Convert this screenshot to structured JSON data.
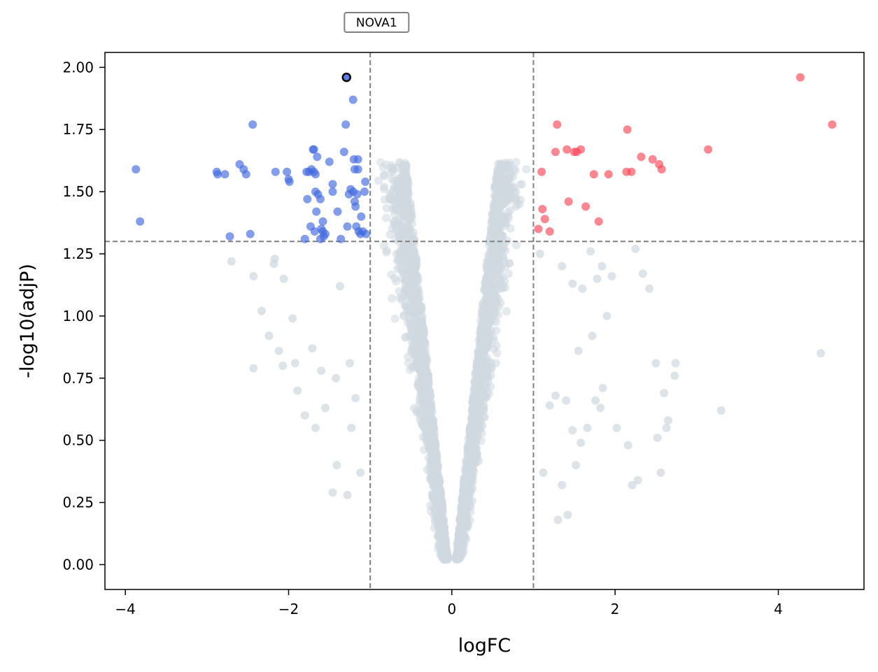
{
  "chart_data": {
    "type": "scatter",
    "title": "",
    "xlabel": "logFC",
    "ylabel": "-log10(adjP)",
    "xlim": [
      -4.25,
      5.05
    ],
    "ylim": [
      -0.1,
      2.06
    ],
    "x_ticks": [
      -4,
      -2,
      0,
      2,
      4
    ],
    "x_tick_labels": [
      "−4",
      "−2",
      "0",
      "2",
      "4"
    ],
    "y_ticks": [
      0.0,
      0.25,
      0.5,
      0.75,
      1.0,
      1.25,
      1.5,
      1.75,
      2.0
    ],
    "y_tick_labels": [
      "0.00",
      "0.25",
      "0.50",
      "0.75",
      "1.00",
      "1.25",
      "1.50",
      "1.75",
      "2.00"
    ],
    "grid": false,
    "thresholds": {
      "logFC": [
        -1,
        1
      ],
      "neg_log10_adjP": 1.3
    },
    "colors": {
      "down": "#4169e1",
      "up": "#ff4757",
      "not_significant": "#cfd8e0",
      "threshold_line": "#808080",
      "highlight_edge": "#000000"
    },
    "series": [
      {
        "group": "down",
        "points": [
          [
            -3.87,
            1.59
          ],
          [
            -3.82,
            1.38
          ],
          [
            -2.88,
            1.58
          ],
          [
            -2.87,
            1.57
          ],
          [
            -2.78,
            1.57
          ],
          [
            -2.72,
            1.32
          ],
          [
            -2.6,
            1.61
          ],
          [
            -2.55,
            1.59
          ],
          [
            -2.52,
            1.57
          ],
          [
            -2.47,
            1.33
          ],
          [
            -2.44,
            1.77
          ],
          [
            -2.16,
            1.58
          ],
          [
            -2.02,
            1.58
          ],
          [
            -2.0,
            1.55
          ],
          [
            -1.99,
            1.54
          ],
          [
            -1.8,
            1.31
          ],
          [
            -1.78,
            1.58
          ],
          [
            -1.77,
            1.47
          ],
          [
            -1.75,
            1.58
          ],
          [
            -1.73,
            1.36
          ],
          [
            -1.72,
            1.59
          ],
          [
            -1.7,
            1.67
          ],
          [
            -1.69,
            1.67
          ],
          [
            -1.69,
            1.58
          ],
          [
            -1.68,
            1.34
          ],
          [
            -1.67,
            1.5
          ],
          [
            -1.67,
            1.57
          ],
          [
            -1.66,
            1.42
          ],
          [
            -1.65,
            1.64
          ],
          [
            -1.64,
            1.49
          ],
          [
            -1.61,
            1.31
          ],
          [
            -1.61,
            1.47
          ],
          [
            -1.6,
            1.35
          ],
          [
            -1.58,
            1.34
          ],
          [
            -1.58,
            1.38
          ],
          [
            -1.57,
            1.32
          ],
          [
            -1.55,
            1.33
          ],
          [
            -1.5,
            1.62
          ],
          [
            -1.46,
            1.53
          ],
          [
            -1.46,
            1.5
          ],
          [
            -1.4,
            1.42
          ],
          [
            -1.36,
            1.31
          ],
          [
            -1.32,
            1.66
          ],
          [
            -1.3,
            1.77
          ],
          [
            -1.28,
            1.36
          ],
          [
            -1.26,
            1.49
          ],
          [
            -1.24,
            1.51
          ],
          [
            -1.21,
            1.87
          ],
          [
            -1.21,
            1.5
          ],
          [
            -1.2,
            1.63
          ],
          [
            -1.19,
            1.59
          ],
          [
            -1.19,
            1.46
          ],
          [
            -1.18,
            1.44
          ],
          [
            -1.17,
            1.36
          ],
          [
            -1.16,
            1.49
          ],
          [
            -1.15,
            1.59
          ],
          [
            -1.15,
            1.63
          ],
          [
            -1.14,
            1.34
          ],
          [
            -1.12,
            1.33
          ],
          [
            -1.11,
            1.4
          ],
          [
            -1.09,
            1.34
          ],
          [
            -1.07,
            1.5
          ],
          [
            -1.06,
            1.54
          ],
          [
            -1.05,
            1.33
          ]
        ]
      },
      {
        "group": "up",
        "points": [
          [
            1.06,
            1.35
          ],
          [
            1.1,
            1.58
          ],
          [
            1.11,
            1.43
          ],
          [
            1.14,
            1.39
          ],
          [
            1.2,
            1.34
          ],
          [
            1.27,
            1.66
          ],
          [
            1.29,
            1.77
          ],
          [
            1.41,
            1.67
          ],
          [
            1.43,
            1.46
          ],
          [
            1.5,
            1.66
          ],
          [
            1.53,
            1.66
          ],
          [
            1.58,
            1.67
          ],
          [
            1.64,
            1.44
          ],
          [
            1.74,
            1.57
          ],
          [
            1.8,
            1.38
          ],
          [
            1.92,
            1.57
          ],
          [
            2.14,
            1.58
          ],
          [
            2.15,
            1.75
          ],
          [
            2.2,
            1.58
          ],
          [
            2.32,
            1.64
          ],
          [
            2.46,
            1.63
          ],
          [
            2.54,
            1.61
          ],
          [
            2.57,
            1.59
          ],
          [
            3.14,
            1.67
          ],
          [
            4.27,
            1.96
          ],
          [
            4.66,
            1.77
          ]
        ]
      }
    ],
    "annotations": [
      {
        "label": "NOVA1",
        "x": -1.29,
        "y": 1.96
      }
    ]
  }
}
